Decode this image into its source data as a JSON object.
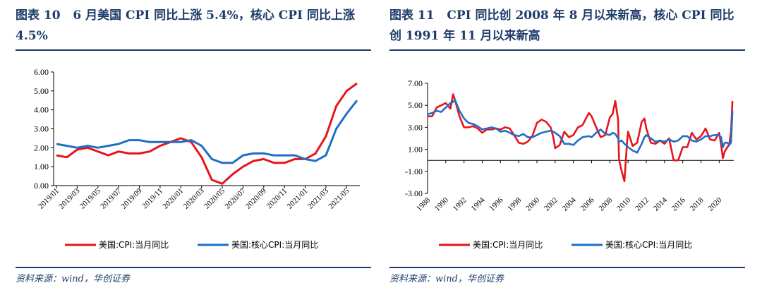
{
  "source_label": "资料来源：wind，华创证券",
  "chart_data": [
    {
      "type": "line",
      "figure": "图表 10",
      "title": "6 月美国 CPI 同比上涨 5.4%，核心 CPI 同比上涨 4.5%",
      "xlabel": "",
      "ylabel": "",
      "ylim": [
        0,
        6
      ],
      "y_ticks": [
        "6.00",
        "5.00",
        "4.00",
        "3.00",
        "2.00",
        "1.00",
        "0.00"
      ],
      "x_tick_labels": [
        "2019/01",
        "2019/03",
        "2019/05",
        "2019/07",
        "2019/09",
        "2019/11",
        "2020/01",
        "2020/03",
        "2020/05",
        "2020/07",
        "2020/09",
        "2020/11",
        "2021/01",
        "2021/03",
        "2021/05"
      ],
      "x": [
        "2019/01",
        "2019/02",
        "2019/03",
        "2019/04",
        "2019/05",
        "2019/06",
        "2019/07",
        "2019/08",
        "2019/09",
        "2019/10",
        "2019/11",
        "2019/12",
        "2020/01",
        "2020/02",
        "2020/03",
        "2020/04",
        "2020/05",
        "2020/06",
        "2020/07",
        "2020/08",
        "2020/09",
        "2020/10",
        "2020/11",
        "2020/12",
        "2021/01",
        "2021/02",
        "2021/03",
        "2021/04",
        "2021/05",
        "2021/06"
      ],
      "series": [
        {
          "name": "美国:CPI:当月同比",
          "color": "#e8141c",
          "values": [
            1.6,
            1.5,
            1.9,
            2.0,
            1.8,
            1.6,
            1.8,
            1.7,
            1.7,
            1.8,
            2.1,
            2.3,
            2.5,
            2.3,
            1.5,
            0.3,
            0.1,
            0.6,
            1.0,
            1.3,
            1.4,
            1.2,
            1.2,
            1.4,
            1.4,
            1.7,
            2.6,
            4.2,
            5.0,
            5.4
          ]
        },
        {
          "name": "美国:核心CPI:当月同比",
          "color": "#1f6fc6",
          "values": [
            2.2,
            2.1,
            2.0,
            2.1,
            2.0,
            2.1,
            2.2,
            2.4,
            2.4,
            2.3,
            2.3,
            2.3,
            2.3,
            2.4,
            2.1,
            1.4,
            1.2,
            1.2,
            1.6,
            1.7,
            1.7,
            1.6,
            1.6,
            1.6,
            1.4,
            1.3,
            1.6,
            3.0,
            3.8,
            4.5
          ]
        }
      ],
      "legend_position": "bottom"
    },
    {
      "type": "line",
      "figure": "图表 11",
      "title": "CPI 同比创 2008 年 8 月以来新高，核心 CPI 同比创 1991 年 11 月以来新高",
      "xlabel": "",
      "ylabel": "",
      "ylim": [
        -3,
        7
      ],
      "xlim": [
        1988,
        2021.6
      ],
      "y_ticks": [
        "7.00",
        "5.00",
        "3.00",
        "1.00",
        "-1.00",
        "-3.00"
      ],
      "x_tick_labels": [
        "1988",
        "1990",
        "1992",
        "1994",
        "1996",
        "1998",
        "2000",
        "2002",
        "2004",
        "2006",
        "2008",
        "2010",
        "2012",
        "2014",
        "2016",
        "2018",
        "2020"
      ],
      "x": [
        1988,
        1988.5,
        1989,
        1989.5,
        1990,
        1990.5,
        1990.8,
        1991,
        1991.5,
        1992,
        1992.5,
        1993,
        1993.5,
        1994,
        1994.5,
        1995,
        1995.5,
        1996,
        1996.5,
        1997,
        1997.5,
        1998,
        1998.5,
        1999,
        1999.5,
        2000,
        2000.5,
        2001,
        2001.5,
        2001.8,
        2002,
        2002.5,
        2003,
        2003.5,
        2004,
        2004.5,
        2005,
        2005.7,
        2006,
        2006.5,
        2007,
        2007.5,
        2008,
        2008.3,
        2008.6,
        2008.9,
        2009,
        2009.3,
        2009.6,
        2009.9,
        2010,
        2010.5,
        2011,
        2011.5,
        2011.8,
        2012,
        2012.5,
        2013,
        2013.5,
        2014,
        2014.5,
        2015,
        2015.5,
        2016,
        2016.5,
        2017,
        2017.5,
        2018,
        2018.5,
        2019,
        2019.5,
        2020,
        2020.2,
        2020.4,
        2020.6,
        2020.9,
        2021.1,
        2021.3,
        2021.45
      ],
      "series": [
        {
          "name": "美国:CPI:当月同比",
          "color": "#e8141c",
          "values": [
            4.0,
            4.0,
            4.8,
            5.0,
            5.2,
            4.7,
            6.0,
            5.5,
            4.0,
            3.0,
            3.0,
            3.1,
            2.9,
            2.5,
            2.8,
            2.8,
            2.9,
            2.8,
            3.0,
            2.9,
            2.3,
            1.6,
            1.5,
            1.7,
            2.2,
            3.4,
            3.7,
            3.5,
            3.0,
            2.1,
            1.1,
            1.4,
            2.6,
            2.1,
            2.3,
            3.0,
            3.2,
            4.3,
            4.0,
            3.0,
            2.1,
            2.3,
            3.9,
            4.2,
            5.4,
            3.7,
            0.1,
            -1.0,
            -1.9,
            1.8,
            2.6,
            1.3,
            1.6,
            3.5,
            3.8,
            2.9,
            1.6,
            1.5,
            1.8,
            1.5,
            2.0,
            0.0,
            0.0,
            1.2,
            1.2,
            2.5,
            1.9,
            2.2,
            2.9,
            1.9,
            1.8,
            2.5,
            1.5,
            0.2,
            0.8,
            1.2,
            1.4,
            2.6,
            5.4
          ]
        },
        {
          "name": "美国:核心CPI:当月同比",
          "color": "#1f6fc6",
          "values": [
            4.2,
            4.3,
            4.5,
            4.4,
            4.8,
            5.2,
            5.3,
            5.5,
            4.5,
            3.8,
            3.4,
            3.3,
            3.1,
            2.8,
            2.9,
            3.0,
            2.9,
            2.6,
            2.7,
            2.5,
            2.3,
            2.2,
            2.4,
            2.1,
            2.1,
            2.3,
            2.5,
            2.6,
            2.7,
            2.6,
            2.5,
            2.2,
            1.5,
            1.5,
            1.4,
            1.8,
            2.1,
            2.2,
            2.1,
            2.5,
            2.8,
            2.4,
            2.3,
            2.5,
            2.4,
            2.0,
            1.7,
            1.8,
            1.5,
            1.3,
            1.2,
            0.9,
            0.7,
            1.5,
            2.1,
            2.3,
            2.0,
            1.7,
            1.8,
            1.7,
            1.9,
            1.7,
            1.8,
            2.2,
            2.2,
            1.8,
            1.7,
            1.9,
            2.2,
            2.2,
            2.3,
            2.3,
            2.1,
            1.2,
            1.6,
            1.6,
            1.4,
            1.6,
            4.5
          ]
        }
      ],
      "legend_position": "bottom"
    }
  ]
}
